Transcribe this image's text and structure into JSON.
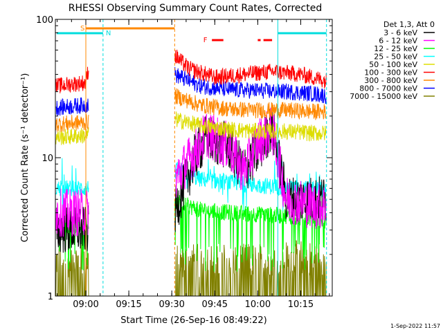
{
  "chart_data": {
    "type": "line",
    "title": "RHESSI Observing Summary Count Rates, Corrected",
    "xlabel": "Start Time (26-Sep-16 08:49:22)",
    "ylabel": "Corrected Count Rate (s⁻¹ detector⁻¹)",
    "yscale": "log",
    "xlim": [
      "08:49:22",
      "10:26:00"
    ],
    "ylim": [
      1,
      100
    ],
    "x_ticks": [
      "09:00",
      "09:15",
      "09:30",
      "09:45",
      "10:00",
      "10:15"
    ],
    "y_ticks": [
      "1",
      "10",
      "100"
    ],
    "grid": false,
    "legend_position": "right",
    "legend_title": "Det 1,3, Att 0",
    "footer_date": "1-Sep-2022 11:57",
    "series": [
      {
        "name": "3 - 6 keV",
        "color": "#000000",
        "points": [
          [
            "08:50",
            3.0
          ],
          [
            "09:00",
            3.0
          ],
          [
            "09:31",
            4.0
          ],
          [
            "09:38",
            10.0
          ],
          [
            "09:42",
            14.0
          ],
          [
            "09:50",
            12.0
          ],
          [
            "09:55",
            8.0
          ],
          [
            "10:00",
            11.0
          ],
          [
            "10:05",
            17.0
          ],
          [
            "10:10",
            5.0
          ],
          [
            "10:20",
            5.0
          ],
          [
            "10:24",
            5.0
          ]
        ]
      },
      {
        "name": "6 - 12 keV",
        "color": "#ff00ff",
        "points": [
          [
            "08:50",
            4.0
          ],
          [
            "09:00",
            4.0
          ],
          [
            "09:31",
            7.0
          ],
          [
            "09:38",
            11.0
          ],
          [
            "09:42",
            15.0
          ],
          [
            "09:50",
            12.0
          ],
          [
            "09:55",
            8.0
          ],
          [
            "10:00",
            13.0
          ],
          [
            "10:05",
            16.0
          ],
          [
            "10:10",
            5.0
          ],
          [
            "10:20",
            4.5
          ],
          [
            "10:24",
            4.5
          ]
        ]
      },
      {
        "name": "12 - 25 keV",
        "color": "#00ff00",
        "points": [
          [
            "08:50",
            3.2
          ],
          [
            "09:00",
            3.3
          ],
          [
            "09:31",
            4.8
          ],
          [
            "09:40",
            4.2
          ],
          [
            "09:50",
            4.0
          ],
          [
            "10:00",
            3.9
          ],
          [
            "10:10",
            3.8
          ],
          [
            "10:20",
            3.6
          ],
          [
            "10:24",
            3.5
          ]
        ]
      },
      {
        "name": "25 - 50 keV",
        "color": "#00ffff",
        "points": [
          [
            "08:50",
            6.0
          ],
          [
            "09:00",
            6.0
          ],
          [
            "09:31",
            8.0
          ],
          [
            "09:40",
            7.0
          ],
          [
            "09:50",
            6.6
          ],
          [
            "10:00",
            6.3
          ],
          [
            "10:10",
            6.1
          ],
          [
            "10:20",
            5.9
          ],
          [
            "10:24",
            5.9
          ]
        ]
      },
      {
        "name": "50 - 100 keV",
        "color": "#dddd00",
        "points": [
          [
            "08:50",
            14.0
          ],
          [
            "09:00",
            14.5
          ],
          [
            "09:31",
            19.0
          ],
          [
            "09:40",
            17.0
          ],
          [
            "09:50",
            16.0
          ],
          [
            "10:00",
            15.5
          ],
          [
            "10:10",
            15.5
          ],
          [
            "10:20",
            15.0
          ],
          [
            "10:24",
            15.0
          ]
        ]
      },
      {
        "name": "100 - 300 keV",
        "color": "#ff0000",
        "points": [
          [
            "08:50",
            33.0
          ],
          [
            "09:00",
            35.0
          ],
          [
            "09:01",
            45.0
          ],
          [
            "09:31",
            55.0
          ],
          [
            "09:36",
            44.0
          ],
          [
            "09:45",
            38.0
          ],
          [
            "09:55",
            40.0
          ],
          [
            "10:05",
            42.0
          ],
          [
            "10:15",
            40.0
          ],
          [
            "10:24",
            36.0
          ]
        ]
      },
      {
        "name": "300 - 800 keV",
        "color": "#ff8800",
        "points": [
          [
            "08:50",
            17.5
          ],
          [
            "09:00",
            18.0
          ],
          [
            "09:31",
            28.0
          ],
          [
            "09:40",
            24.0
          ],
          [
            "09:50",
            22.5
          ],
          [
            "10:00",
            22.0
          ],
          [
            "10:10",
            22.0
          ],
          [
            "10:20",
            21.5
          ],
          [
            "10:24",
            21.5
          ]
        ]
      },
      {
        "name": "800 - 7000 keV",
        "color": "#0000ff",
        "points": [
          [
            "08:50",
            23.0
          ],
          [
            "09:00",
            24.0
          ],
          [
            "09:31",
            40.0
          ],
          [
            "09:40",
            33.0
          ],
          [
            "09:50",
            31.0
          ],
          [
            "10:00",
            30.5
          ],
          [
            "10:10",
            30.0
          ],
          [
            "10:20",
            29.0
          ],
          [
            "10:24",
            28.0
          ]
        ]
      },
      {
        "name": "7000 - 15000 keV",
        "color": "#808000",
        "points": [
          [
            "08:50",
            1.8
          ],
          [
            "09:00",
            1.8
          ],
          [
            "09:31",
            1.8
          ],
          [
            "09:45",
            1.8
          ],
          [
            "10:00",
            1.8
          ],
          [
            "10:10",
            1.9
          ],
          [
            "10:24",
            1.9
          ]
        ]
      }
    ],
    "annotations": {
      "S": {
        "label": "S",
        "color": "#ff8800",
        "start": "09:00",
        "end": "09:31"
      },
      "N": {
        "label": "N",
        "color": "#00dddd"
      },
      "F": {
        "label": "F",
        "color": "#ff0000"
      }
    }
  }
}
